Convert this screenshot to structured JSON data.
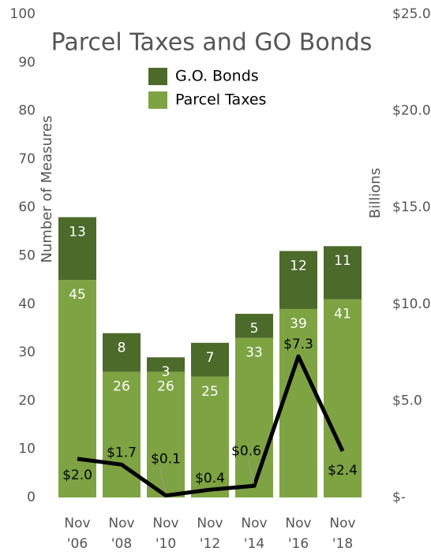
{
  "chart_data": {
    "type": "bar",
    "title": "Parcel Taxes and GO Bonds",
    "y_label": "Number of Measures",
    "y2_label": "Billions",
    "categories": [
      "Nov '06",
      "Nov '08",
      "Nov '10",
      "Nov '12",
      "Nov '14",
      "Nov '16",
      "Nov '18"
    ],
    "stacked": true,
    "series": [
      {
        "name": "Parcel Taxes",
        "color": "#7ea343",
        "values": [
          45,
          26,
          26,
          25,
          33,
          39,
          41
        ]
      },
      {
        "name": "G.O. Bonds",
        "color": "#4c6a2a",
        "values": [
          13,
          8,
          3,
          7,
          5,
          12,
          11
        ]
      }
    ],
    "line": {
      "type": "line",
      "axis": "y2",
      "color": "#000000",
      "values": [
        2.0,
        1.7,
        0.1,
        0.4,
        0.6,
        7.3,
        2.4
      ],
      "value_labels": [
        "$2.0",
        "$1.7",
        "$0.1",
        "$0.4",
        "$0.6",
        "$7.3",
        "$2.4"
      ]
    },
    "ylim": [
      0,
      100
    ],
    "yticks": [
      0,
      10,
      20,
      30,
      40,
      50,
      60,
      70,
      80,
      90,
      100
    ],
    "y2lim": [
      0,
      25
    ],
    "y2ticks": [
      {
        "value": 0,
        "label": "$-"
      },
      {
        "value": 5,
        "label": "$5.0"
      },
      {
        "value": 10,
        "label": "$10.0"
      },
      {
        "value": 15,
        "label": "$15.0"
      },
      {
        "value": 20,
        "label": "$20.0"
      },
      {
        "value": 25,
        "label": "$25.0"
      }
    ],
    "legend": "top"
  }
}
